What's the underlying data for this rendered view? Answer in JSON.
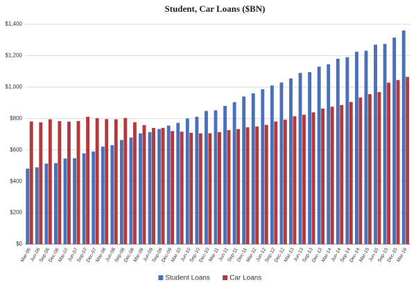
{
  "chart_data": {
    "type": "bar",
    "title": "Student, Car Loans ($BN)",
    "categories": [
      "Mar-06",
      "Jun-06",
      "Sep-06",
      "Dec-06",
      "Mar-07",
      "Jun-07",
      "Sep-07",
      "Dec-07",
      "Mar-08",
      "Jun-08",
      "Sep-08",
      "Dec-08",
      "Mar-09",
      "Jun-09",
      "Sep-09",
      "Dec-09",
      "Mar-10",
      "Jun-10",
      "Sep-10",
      "Dec-10",
      "Mar-11",
      "Jun-11",
      "Sep-11",
      "Dec-11",
      "Mar-12",
      "Jun-12",
      "Sep-12",
      "Dec-12",
      "Mar-13",
      "Jun-13",
      "Sep-13",
      "Dec-13",
      "Mar-14",
      "Jun-14",
      "Sep-14",
      "Dec-14",
      "Mar-15",
      "Jun-15",
      "Sep-15",
      "Dec-15",
      "Mar-16"
    ],
    "series": [
      {
        "name": "Student Loans",
        "color": "#4a70b8",
        "values": [
          481,
          489,
          513,
          516,
          545,
          547,
          578,
          590,
          621,
          630,
          663,
          679,
          705,
          713,
          733,
          755,
          772,
          800,
          811,
          848,
          852,
          880,
          904,
          940,
          960,
          986,
          1010,
          1029,
          1055,
          1090,
          1095,
          1130,
          1145,
          1180,
          1190,
          1225,
          1231,
          1270,
          1275,
          1315,
          1360
        ]
      },
      {
        "name": "Car Loans",
        "color": "#b33a3a",
        "values": [
          781,
          775,
          795,
          783,
          780,
          784,
          811,
          802,
          796,
          795,
          803,
          776,
          758,
          740,
          740,
          720,
          716,
          709,
          705,
          706,
          713,
          726,
          733,
          744,
          749,
          759,
          781,
          792,
          814,
          824,
          839,
          863,
          875,
          886,
          905,
          933,
          955,
          968,
          1028,
          1045,
          1065
        ]
      }
    ],
    "ylim": [
      0,
      1400
    ],
    "yticks": [
      {
        "value": 0,
        "label": "$0"
      },
      {
        "value": 200,
        "label": "$200"
      },
      {
        "value": 400,
        "label": "$400"
      },
      {
        "value": 600,
        "label": "$600"
      },
      {
        "value": 800,
        "label": "$800"
      },
      {
        "value": 1000,
        "label": "$1,000"
      },
      {
        "value": 1200,
        "label": "$1,200"
      },
      {
        "value": 1400,
        "label": "$1,400"
      }
    ],
    "grid": true,
    "legend": "bottom"
  }
}
